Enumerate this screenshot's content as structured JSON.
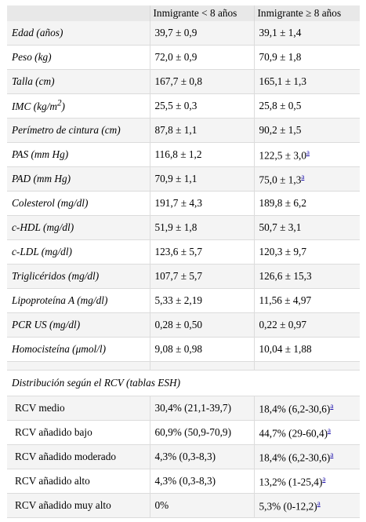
{
  "header": {
    "col1": "",
    "col2": "Inmigrante < 8 años",
    "col3": "Inmigrante ≥ 8 años"
  },
  "rows": [
    {
      "label": "Edad (años)",
      "v1": "39,7 ± 0,9",
      "v2": "39,1 ± 1,4",
      "note": ""
    },
    {
      "label": "Peso (kg)",
      "v1": "72,0 ± 0,9",
      "v2": "70,9 ± 1,8",
      "note": ""
    },
    {
      "label": "Talla (cm)",
      "v1": "167,7 ± 0,8",
      "v2": "165,1 ± 1,3",
      "note": ""
    },
    {
      "label": "IMC (kg/m",
      "label_sup": "2",
      "label_end": ")",
      "v1": "25,5 ± 0,3",
      "v2": "25,8 ± 0,5",
      "note": ""
    },
    {
      "label": "Perímetro de cintura (cm)",
      "v1": "87,8 ± 1,1",
      "v2": "90,2 ± 1,5",
      "note": ""
    },
    {
      "label": "PAS (mm Hg)",
      "v1": "116,8 ± 1,2",
      "v2": "122,5 ± 3,0",
      "note": "a"
    },
    {
      "label": "PAD (mm Hg)",
      "v1": "70,9 ± 1,1",
      "v2": "75,0 ± 1,3",
      "note": "a"
    },
    {
      "label": "Colesterol (mg/dl)",
      "v1": "191,7 ± 4,3",
      "v2": "189,8 ± 6,2",
      "note": ""
    },
    {
      "label": "c-HDL (mg/dl)",
      "v1": "51,9 ± 1,8",
      "v2": "50,7 ± 3,1",
      "note": ""
    },
    {
      "label": "c-LDL (mg/dl)",
      "v1": "123,6 ± 5,7",
      "v2": "120,3 ± 9,7",
      "note": ""
    },
    {
      "label": "Triglicéridos (mg/dl)",
      "v1": "107,7 ± 5,7",
      "v2": "126,6 ± 15,3",
      "note": ""
    },
    {
      "label": "Lipoproteína A (mg/dl)",
      "v1": "5,33 ± 2,19",
      "v2": "11,56 ± 4,97",
      "note": ""
    },
    {
      "label": "PCR US (mg/dl)",
      "v1": "0,28 ± 0,50",
      "v2": "0,22 ± 0,97",
      "note": ""
    },
    {
      "label": "Homocisteína (μmol/l)",
      "v1": "9,08 ± 0,98",
      "v2": "10,04 ± 1,88",
      "note": ""
    }
  ],
  "section_title": "Distribución según el RCV (tablas ESH)",
  "rcv_rows": [
    {
      "label": "RCV medio",
      "v1": "30,4% (21,1-39,7)",
      "v2": "18,4% (6,2-30,6)",
      "note": "a"
    },
    {
      "label": "RCV añadido bajo",
      "v1": "60,9% (50,9-70,9)",
      "v2": "44,7% (29-60,4)",
      "note": "a"
    },
    {
      "label": "RCV añadido moderado",
      "v1": "4,3% (0,3-8,3)",
      "v2": "18,4% (6,2-30,6)",
      "note": "a"
    },
    {
      "label": "RCV añadido alto",
      "v1": "4,3% (0,3-8,3)",
      "v2": "13,2% (1-25,4)",
      "note": "a"
    },
    {
      "label": "RCV añadido muy alto",
      "v1": "0%",
      "v2": "5,3% (0-12,2)",
      "note": "a"
    }
  ]
}
